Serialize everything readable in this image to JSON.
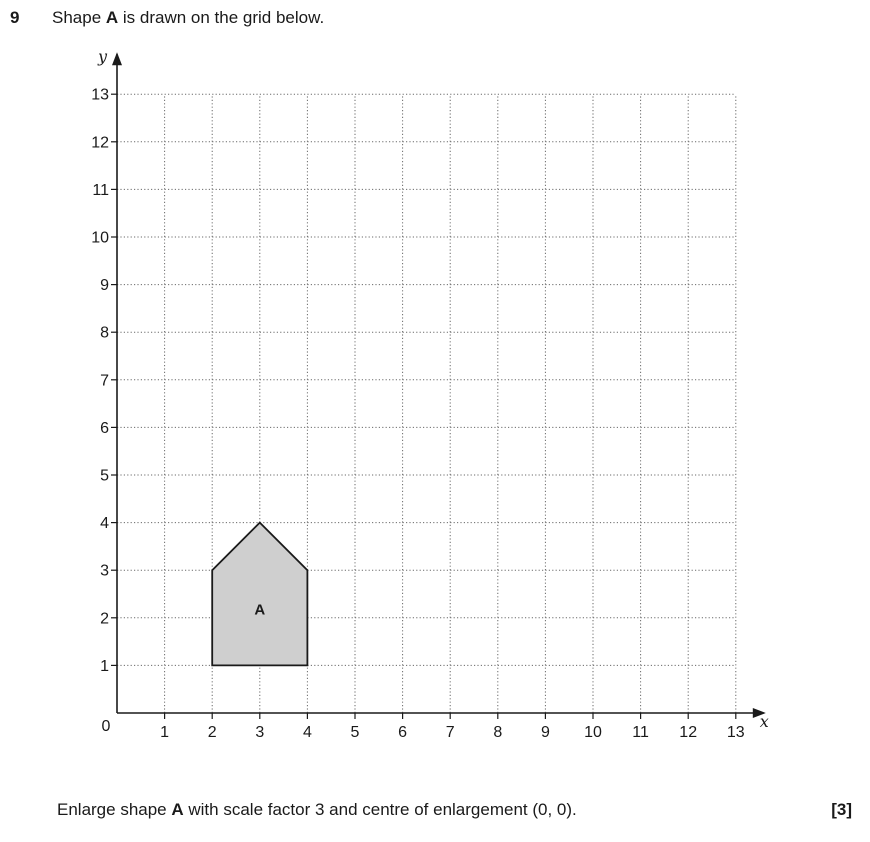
{
  "question": {
    "number": "9",
    "stem_before": "Shape ",
    "stem_bold": "A",
    "stem_after": " is drawn on the grid below.",
    "task_before": "Enlarge shape ",
    "task_bold": "A",
    "task_after": " with scale factor 3 and centre of enlargement (0, 0).",
    "marks": "[3]"
  },
  "diagram": {
    "x_axis_label": "x",
    "y_axis_label": "y",
    "origin_label": "0",
    "x_range": [
      0,
      13
    ],
    "y_range": [
      0,
      13
    ],
    "x_ticks": [
      "1",
      "2",
      "3",
      "4",
      "5",
      "6",
      "7",
      "8",
      "9",
      "10",
      "11",
      "12",
      "13"
    ],
    "y_ticks": [
      "1",
      "2",
      "3",
      "4",
      "5",
      "6",
      "7",
      "8",
      "9",
      "10",
      "11",
      "12",
      "13"
    ],
    "grid": "dotted",
    "shape": {
      "label": "A",
      "vertices": [
        [
          2,
          1
        ],
        [
          4,
          1
        ],
        [
          4,
          3
        ],
        [
          3,
          4
        ],
        [
          2,
          3
        ]
      ],
      "fill": "#cfcfcf",
      "stroke": "#1a1a1a"
    }
  }
}
